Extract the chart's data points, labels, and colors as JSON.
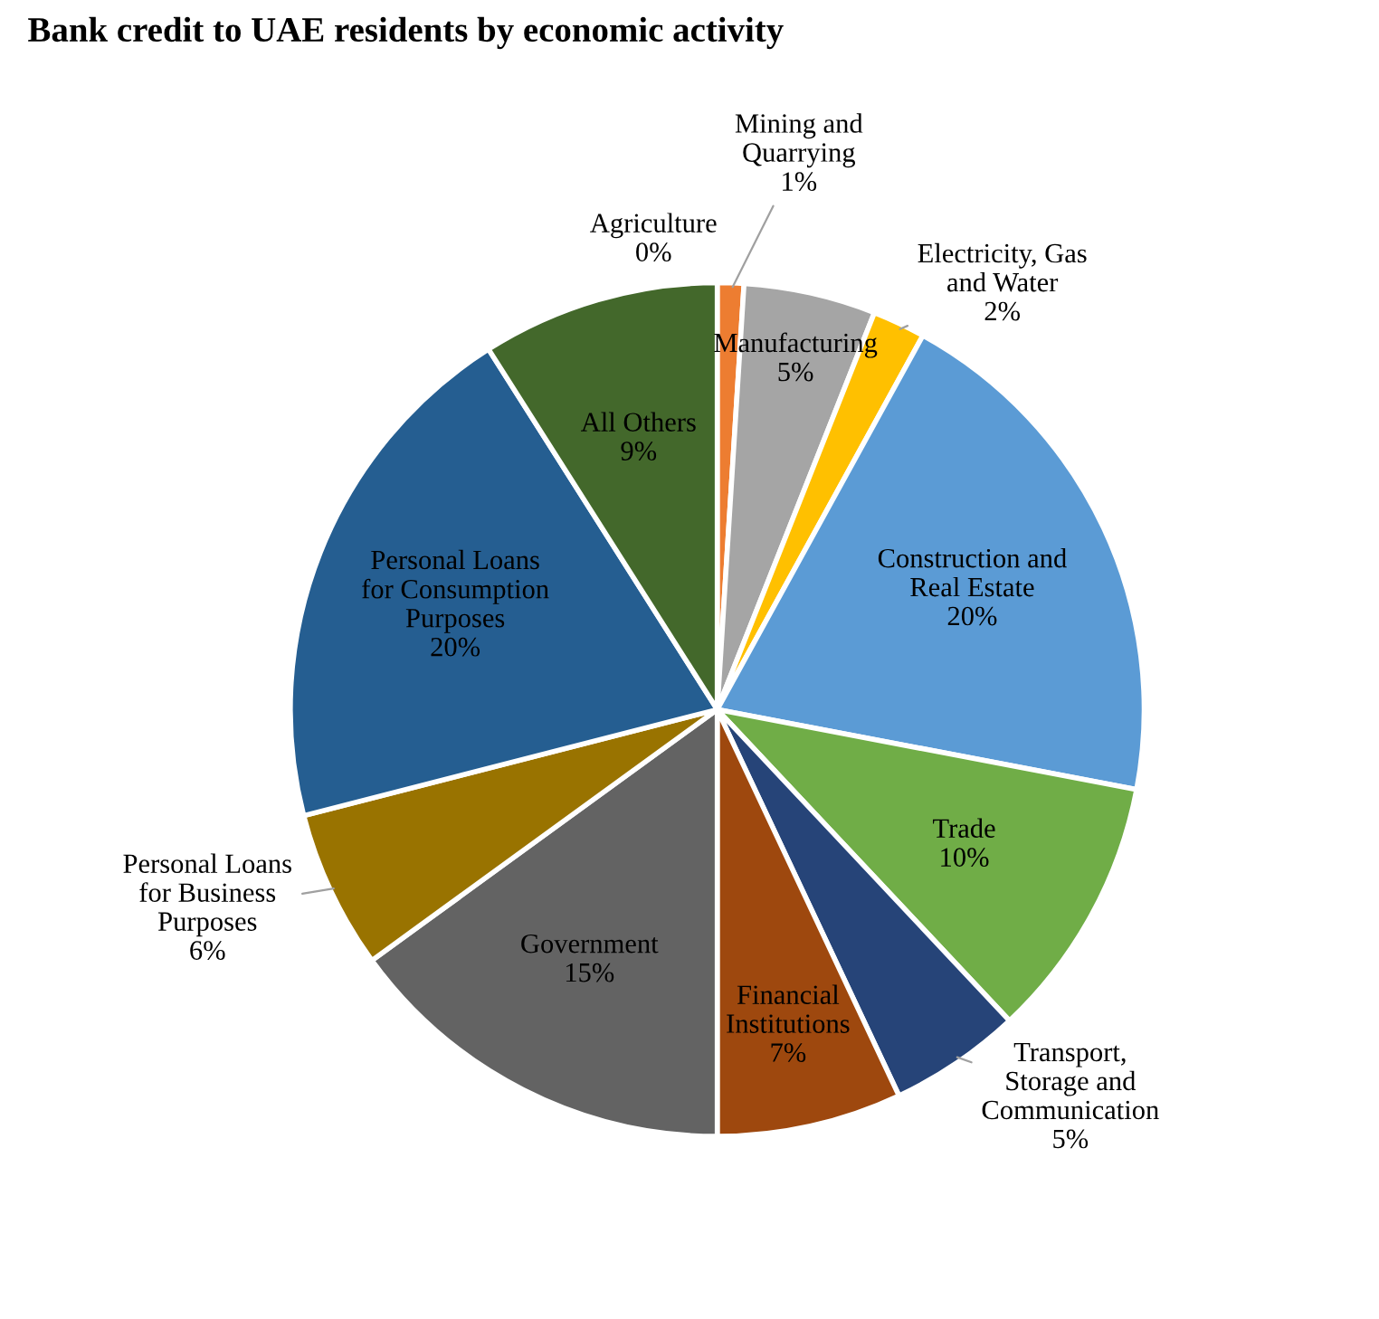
{
  "chart_data": {
    "type": "pie",
    "title": "Bank credit to UAE residents by economic activity",
    "categories": [
      "Agriculture",
      "Mining and\nQuarrying",
      "Manufacturing",
      "Electricity, Gas\nand Water",
      "Construction and\nReal Estate",
      "Trade",
      "Transport,\nStorage and\nCommunication",
      "Financial\nInstitutions",
      "Government",
      "Personal Loans\nfor Business\nPurposes",
      "Personal Loans\nfor Consumption\nPurposes",
      "All Others"
    ],
    "values": [
      0,
      1,
      5,
      2,
      20,
      10,
      5,
      7,
      15,
      6,
      20,
      9
    ],
    "colors": [
      "#4472c4",
      "#ed7d31",
      "#a5a5a5",
      "#ffc000",
      "#5b9bd5",
      "#70ad47",
      "#264478",
      "#9e480e",
      "#636363",
      "#997300",
      "#255e91",
      "#43682b"
    ],
    "value_labels": [
      "0%",
      "1%",
      "5%",
      "2%",
      "20%",
      "10%",
      "5%",
      "7%",
      "15%",
      "6%",
      "20%",
      "9%"
    ],
    "data_labels": true,
    "legend": false
  }
}
